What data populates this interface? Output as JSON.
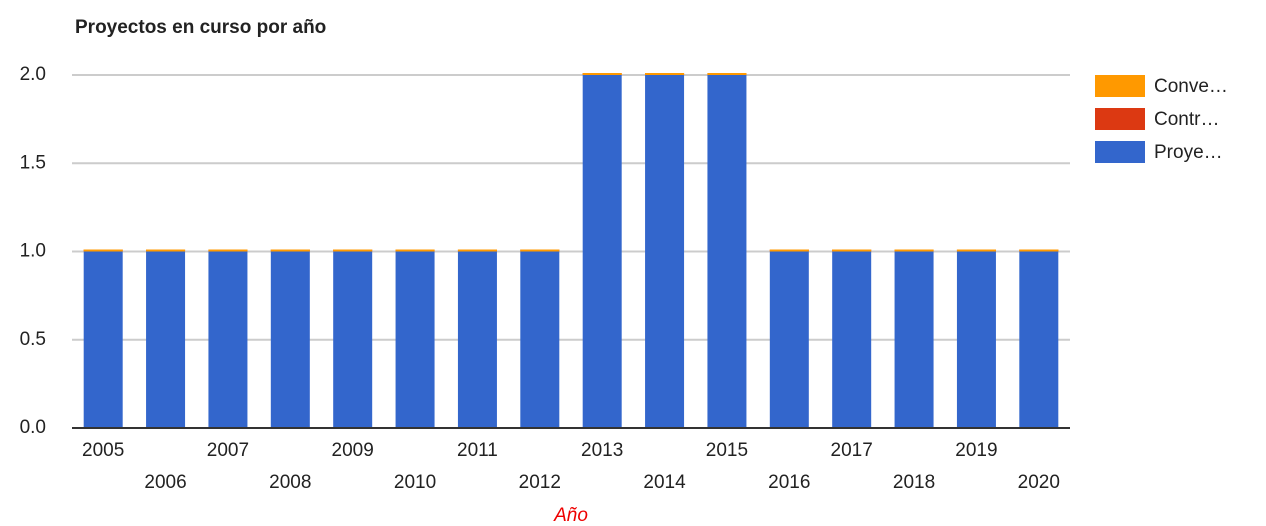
{
  "chart_data": {
    "type": "stacked_bar",
    "title": "Proyectos en curso por año",
    "x_label": "Año",
    "categories": [
      "2005",
      "2006",
      "2007",
      "2008",
      "2009",
      "2010",
      "2011",
      "2012",
      "2013",
      "2014",
      "2015",
      "2016",
      "2017",
      "2018",
      "2019",
      "2020"
    ],
    "series": [
      {
        "name": "Conve…",
        "color": "#ff9900",
        "values": [
          0,
          0,
          0,
          0,
          0,
          0,
          0,
          0,
          0,
          0,
          0,
          0,
          0,
          0,
          0,
          0
        ]
      },
      {
        "name": "Contr…",
        "color": "#dc3912",
        "values": [
          0,
          0,
          0,
          0,
          0,
          0,
          0,
          0,
          0,
          0,
          0,
          0,
          0,
          0,
          0,
          0
        ]
      },
      {
        "name": "Proye…",
        "color": "#3366cc",
        "values": [
          1,
          1,
          1,
          1,
          1,
          1,
          1,
          1,
          2,
          2,
          2,
          1,
          1,
          1,
          1,
          1
        ]
      }
    ],
    "ylim": [
      0,
      2
    ],
    "yticks": [
      {
        "value": 0,
        "label": "0.0"
      },
      0.5,
      {
        "value": 1,
        "label": "1.0"
      },
      1.5,
      {
        "value": 2,
        "label": "2.0"
      }
    ],
    "grid": true,
    "legend": "right"
  }
}
